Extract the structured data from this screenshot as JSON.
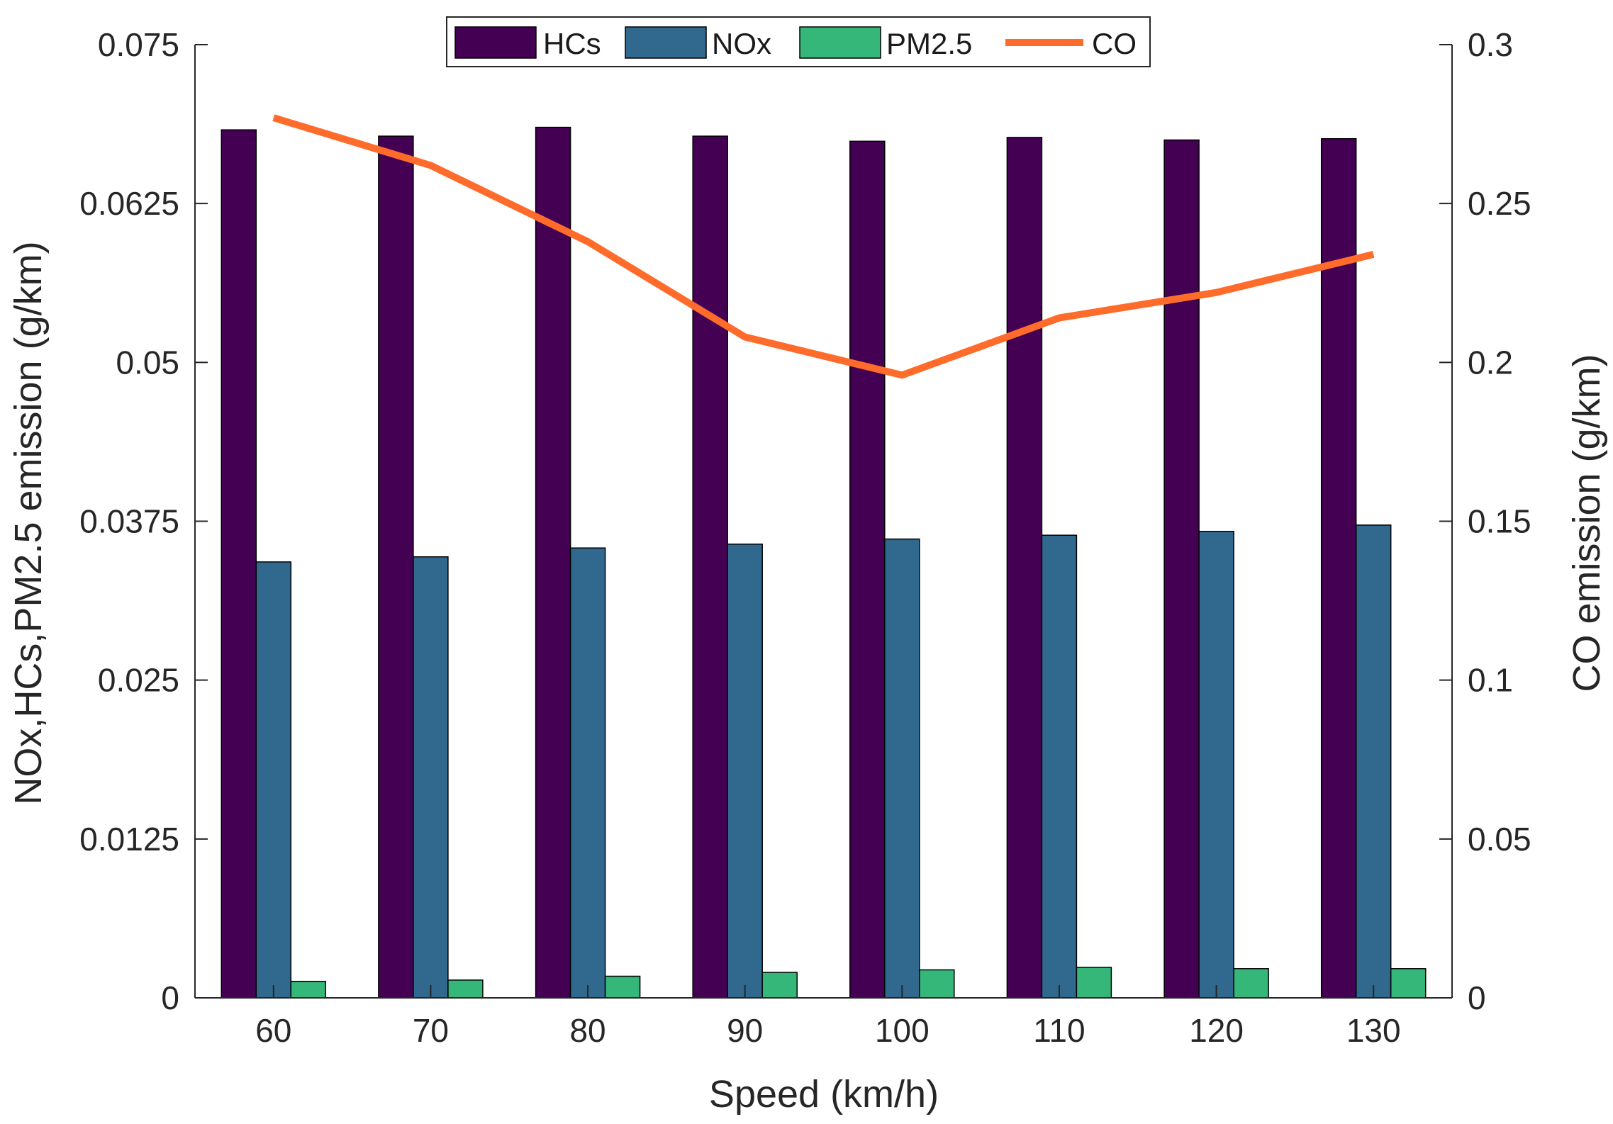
{
  "chart_data": {
    "type": "bar",
    "categories": [
      "60",
      "70",
      "80",
      "90",
      "100",
      "110",
      "120",
      "130"
    ],
    "series": [
      {
        "name": "HCs",
        "axis": "left",
        "kind": "bar",
        "color": "#440154",
        "values": [
          0.0683,
          0.0678,
          0.0685,
          0.0678,
          0.0674,
          0.0677,
          0.0675,
          0.0676
        ]
      },
      {
        "name": "NOx",
        "axis": "left",
        "kind": "bar",
        "color": "#31688E",
        "values": [
          0.0343,
          0.0347,
          0.0354,
          0.0357,
          0.0361,
          0.0364,
          0.0367,
          0.0372
        ]
      },
      {
        "name": "PM2.5",
        "axis": "left",
        "kind": "bar",
        "color": "#35B779",
        "values": [
          0.0013,
          0.0014,
          0.0017,
          0.002,
          0.0022,
          0.0024,
          0.0023,
          0.0023
        ]
      },
      {
        "name": "CO",
        "axis": "right",
        "kind": "line",
        "color": "#FF6B2B",
        "values": [
          0.277,
          0.262,
          0.238,
          0.208,
          0.196,
          0.214,
          0.222,
          0.234
        ]
      }
    ],
    "xlabel": "Speed (km/h)",
    "ylabel_left": "NOx,HCs,PM2.5 emission (g/km)",
    "ylabel_right": "CO emission (g/km)",
    "ylim_left": [
      0,
      0.075
    ],
    "ylim_right": [
      0,
      0.3
    ],
    "yticks_left": [
      "0",
      "0.0125",
      "0.025",
      "0.0375",
      "0.05",
      "0.0625",
      "0.075"
    ],
    "yticks_left_values": [
      0,
      0.0125,
      0.025,
      0.0375,
      0.05,
      0.0625,
      0.075
    ],
    "yticks_right": [
      "0",
      "0.05",
      "0.1",
      "0.15",
      "0.2",
      "0.25",
      "0.3"
    ],
    "yticks_right_values": [
      0,
      0.05,
      0.1,
      0.15,
      0.2,
      0.25,
      0.3
    ],
    "legend_position": "top-center",
    "grid": false
  }
}
